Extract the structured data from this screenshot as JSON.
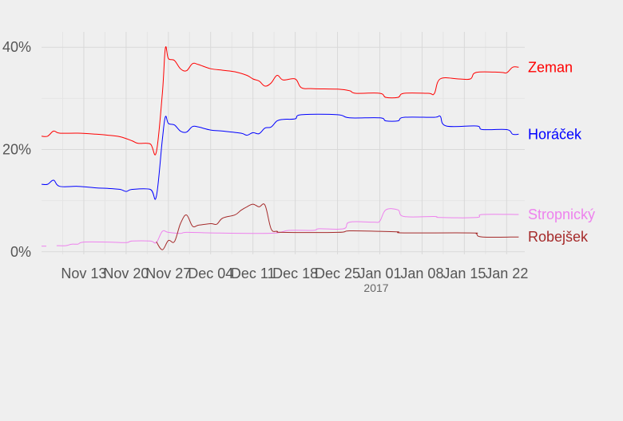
{
  "chart_data": {
    "type": "line",
    "x_unit": "date",
    "xlim": [
      "2016-11-06",
      "2017-01-25"
    ],
    "ylim": [
      -0.5,
      43
    ],
    "y_ticks": [
      {
        "value": 0,
        "label": "0%"
      },
      {
        "value": 20,
        "label": "20%"
      },
      {
        "value": 40,
        "label": "40%"
      }
    ],
    "x_ticks": [
      {
        "date": "2016-11-13",
        "label": "Nov 13"
      },
      {
        "date": "2016-11-20",
        "label": "Nov 20"
      },
      {
        "date": "2016-11-27",
        "label": "Nov 27"
      },
      {
        "date": "2016-12-04",
        "label": "Dec 04"
      },
      {
        "date": "2016-12-11",
        "label": "Dec 11"
      },
      {
        "date": "2016-12-18",
        "label": "Dec 18"
      },
      {
        "date": "2016-12-25",
        "label": "Dec 25"
      },
      {
        "date": "2017-01-01",
        "label": "Jan 01"
      },
      {
        "date": "2017-01-08",
        "label": "Jan 08"
      },
      {
        "date": "2017-01-15",
        "label": "Jan 15"
      },
      {
        "date": "2017-01-22",
        "label": "Jan 22"
      }
    ],
    "x_sublabel": "2017",
    "grid": true,
    "legend": "direct labels at right end of lines",
    "series": [
      {
        "name": "Zeman",
        "color": "#ff0000",
        "points": [
          [
            "2016-11-06",
            22.6
          ],
          [
            "2016-11-07",
            22.6
          ],
          [
            "2016-11-08",
            23.6
          ],
          [
            "2016-11-09",
            23.2
          ],
          [
            "2016-11-12",
            23.2
          ],
          [
            "2016-11-15",
            23.0
          ],
          [
            "2016-11-17",
            22.8
          ],
          [
            "2016-11-19",
            22.5
          ],
          [
            "2016-11-21",
            21.7
          ],
          [
            "2016-11-22",
            21.2
          ],
          [
            "2016-11-24",
            21.1
          ],
          [
            "2016-11-25",
            19.5
          ],
          [
            "2016-11-26",
            31.0
          ],
          [
            "2016-11-26.5",
            39.8
          ],
          [
            "2016-11-27",
            37.8
          ],
          [
            "2016-11-28",
            37.4
          ],
          [
            "2016-11-29",
            35.8
          ],
          [
            "2016-11-30",
            35.4
          ],
          [
            "2016-12-01",
            36.8
          ],
          [
            "2016-12-02",
            36.6
          ],
          [
            "2016-12-04",
            35.8
          ],
          [
            "2016-12-06",
            35.5
          ],
          [
            "2016-12-08",
            35.2
          ],
          [
            "2016-12-10",
            34.5
          ],
          [
            "2016-12-11",
            33.8
          ],
          [
            "2016-12-12",
            33.4
          ],
          [
            "2016-12-13",
            32.4
          ],
          [
            "2016-12-14",
            33.0
          ],
          [
            "2016-12-15",
            34.5
          ],
          [
            "2016-12-16",
            33.6
          ],
          [
            "2016-12-18",
            33.8
          ],
          [
            "2016-12-19",
            32.1
          ],
          [
            "2016-12-21",
            31.9
          ],
          [
            "2016-12-25",
            31.8
          ],
          [
            "2016-12-27",
            31.5
          ],
          [
            "2016-12-28",
            31.0
          ],
          [
            "2017-01-01",
            31.0
          ],
          [
            "2017-01-02",
            30.2
          ],
          [
            "2017-01-04",
            30.2
          ],
          [
            "2017-01-05",
            31.0
          ],
          [
            "2017-01-09",
            31.0
          ],
          [
            "2017-01-10",
            30.9
          ],
          [
            "2017-01-11",
            33.8
          ],
          [
            "2017-01-14",
            33.8
          ],
          [
            "2017-01-16",
            33.8
          ],
          [
            "2017-01-17",
            35.1
          ],
          [
            "2017-01-21",
            35.1
          ],
          [
            "2017-01-22",
            35.0
          ],
          [
            "2017-01-23",
            36.1
          ],
          [
            "2017-01-24",
            36.1
          ]
        ]
      },
      {
        "name": "Horáček",
        "color": "#0000ff",
        "points": [
          [
            "2016-11-06",
            13.2
          ],
          [
            "2016-11-07",
            13.2
          ],
          [
            "2016-11-08",
            14.0
          ],
          [
            "2016-11-09",
            12.8
          ],
          [
            "2016-11-12",
            12.8
          ],
          [
            "2016-11-15",
            12.5
          ],
          [
            "2016-11-17",
            12.4
          ],
          [
            "2016-11-19",
            12.2
          ],
          [
            "2016-11-20",
            11.8
          ],
          [
            "2016-11-21",
            12.2
          ],
          [
            "2016-11-24",
            12.2
          ],
          [
            "2016-11-25",
            10.8
          ],
          [
            "2016-11-26",
            22.0
          ],
          [
            "2016-11-26.5",
            26.4
          ],
          [
            "2016-11-27",
            25.1
          ],
          [
            "2016-11-28",
            24.8
          ],
          [
            "2016-11-29",
            23.6
          ],
          [
            "2016-11-30",
            23.4
          ],
          [
            "2016-12-01",
            24.5
          ],
          [
            "2016-12-02",
            24.4
          ],
          [
            "2016-12-04",
            23.8
          ],
          [
            "2016-12-06",
            23.6
          ],
          [
            "2016-12-09",
            23.2
          ],
          [
            "2016-12-10",
            22.8
          ],
          [
            "2016-12-11",
            23.3
          ],
          [
            "2016-12-12",
            23.1
          ],
          [
            "2016-12-13",
            24.2
          ],
          [
            "2016-12-14",
            24.4
          ],
          [
            "2016-12-15",
            25.6
          ],
          [
            "2016-12-16",
            25.9
          ],
          [
            "2016-12-18",
            26.0
          ],
          [
            "2016-12-19",
            26.8
          ],
          [
            "2016-12-25",
            26.8
          ],
          [
            "2016-12-27",
            26.2
          ],
          [
            "2017-01-01",
            26.2
          ],
          [
            "2017-01-02",
            25.6
          ],
          [
            "2017-01-04",
            25.6
          ],
          [
            "2017-01-05",
            26.3
          ],
          [
            "2017-01-10",
            26.3
          ],
          [
            "2017-01-11",
            26.5
          ],
          [
            "2017-01-12",
            24.6
          ],
          [
            "2017-01-17",
            24.6
          ],
          [
            "2017-01-18",
            23.9
          ],
          [
            "2017-01-22",
            23.9
          ],
          [
            "2017-01-23",
            23.0
          ],
          [
            "2017-01-24",
            23.0
          ]
        ]
      },
      {
        "name": "Stropnický",
        "color": "#ee82ee",
        "points": [
          [
            "2016-11-06",
            1.1
          ],
          [
            "2016-11-06.8",
            1.1
          ],
          null,
          [
            "2016-11-08.5",
            1.2
          ],
          [
            "2016-11-10",
            1.2
          ],
          [
            "2016-11-11",
            1.5
          ],
          [
            "2016-11-12",
            1.5
          ],
          [
            "2016-11-13",
            1.9
          ],
          [
            "2016-11-17",
            1.9
          ],
          [
            "2016-11-20",
            1.8
          ],
          [
            "2016-11-21",
            2.1
          ],
          [
            "2016-11-24",
            2.1
          ],
          [
            "2016-11-25",
            1.8
          ],
          [
            "2016-11-26",
            4.0
          ],
          [
            "2016-11-27",
            3.8
          ],
          [
            "2016-11-29",
            3.6
          ],
          [
            "2016-11-30",
            3.8
          ],
          [
            "2016-12-04",
            3.7
          ],
          [
            "2016-12-11",
            3.6
          ],
          [
            "2016-12-15",
            3.7
          ],
          [
            "2016-12-17",
            4.2
          ],
          [
            "2016-12-21",
            4.2
          ],
          [
            "2016-12-22",
            4.5
          ],
          [
            "2016-12-26",
            4.5
          ],
          [
            "2016-12-27",
            5.8
          ],
          [
            "2016-12-31",
            5.8
          ],
          [
            "2017-01-01",
            6.0
          ],
          [
            "2017-01-02",
            8.2
          ],
          [
            "2017-01-04",
            8.2
          ],
          [
            "2017-01-05",
            6.9
          ],
          [
            "2017-01-10",
            6.9
          ],
          [
            "2017-01-11",
            6.7
          ],
          [
            "2017-01-17",
            6.7
          ],
          [
            "2017-01-18",
            7.3
          ],
          [
            "2017-01-24",
            7.3
          ]
        ]
      },
      {
        "name": "Robejšek",
        "color": "#a52a2a",
        "points": [
          [
            "2016-11-25",
            2.0
          ],
          [
            "2016-11-26",
            0.4
          ],
          [
            "2016-11-27",
            2.2
          ],
          [
            "2016-11-28",
            2.0
          ],
          [
            "2016-11-29",
            5.5
          ],
          [
            "2016-11-30",
            7.2
          ],
          [
            "2016-12-01",
            5.0
          ],
          [
            "2016-12-02",
            5.2
          ],
          [
            "2016-12-04",
            5.5
          ],
          [
            "2016-12-05",
            5.4
          ],
          [
            "2016-12-06",
            6.6
          ],
          [
            "2016-12-08",
            7.2
          ],
          [
            "2016-12-09",
            8.1
          ],
          [
            "2016-12-10",
            8.8
          ],
          [
            "2016-12-11",
            9.3
          ],
          [
            "2016-12-12",
            8.8
          ],
          [
            "2016-12-13",
            9.1
          ],
          [
            "2016-12-14",
            4.5
          ],
          [
            "2016-12-15",
            4.0
          ],
          [
            "2016-12-16",
            3.8
          ],
          [
            "2016-12-25",
            3.8
          ],
          [
            "2016-12-27",
            4.1
          ],
          [
            "2017-01-01",
            4.0
          ],
          [
            "2017-01-04",
            3.9
          ],
          [
            "2017-01-05",
            3.7
          ],
          [
            "2017-01-16",
            3.7
          ],
          [
            "2017-01-17",
            3.5
          ],
          [
            "2017-01-18",
            2.9
          ],
          [
            "2017-01-24",
            2.9
          ]
        ]
      }
    ]
  }
}
